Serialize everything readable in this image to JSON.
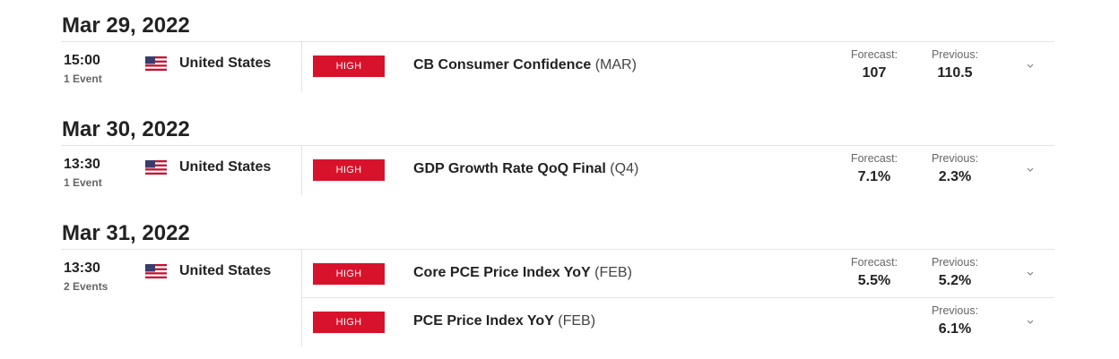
{
  "labels": {
    "forecast": "Forecast:",
    "previous": "Previous:",
    "impact": "HIGH"
  },
  "days": [
    {
      "date": "Mar 29, 2022",
      "time": "15:00",
      "events_count": "1 Event",
      "country": "United States",
      "events": [
        {
          "title": "CB Consumer Confidence",
          "period": "(MAR)",
          "forecast": "107",
          "previous": "110.5"
        }
      ]
    },
    {
      "date": "Mar 30, 2022",
      "time": "13:30",
      "events_count": "1 Event",
      "country": "United States",
      "events": [
        {
          "title": "GDP Growth Rate QoQ Final",
          "period": "(Q4)",
          "forecast": "7.1%",
          "previous": "2.3%"
        }
      ]
    },
    {
      "date": "Mar 31, 2022",
      "time": "13:30",
      "events_count": "2 Events",
      "country": "United States",
      "events": [
        {
          "title": "Core PCE Price Index YoY",
          "period": "(FEB)",
          "forecast": "5.5%",
          "previous": "5.2%"
        },
        {
          "title": "PCE Price Index YoY",
          "period": "(FEB)",
          "previous": "6.1%"
        }
      ]
    }
  ],
  "colors": {
    "impact_high": "#d9122b",
    "divider": "#e3e3e3"
  },
  "icons": {
    "flag": "us-flag-icon",
    "expand": "chevron-down-icon"
  }
}
